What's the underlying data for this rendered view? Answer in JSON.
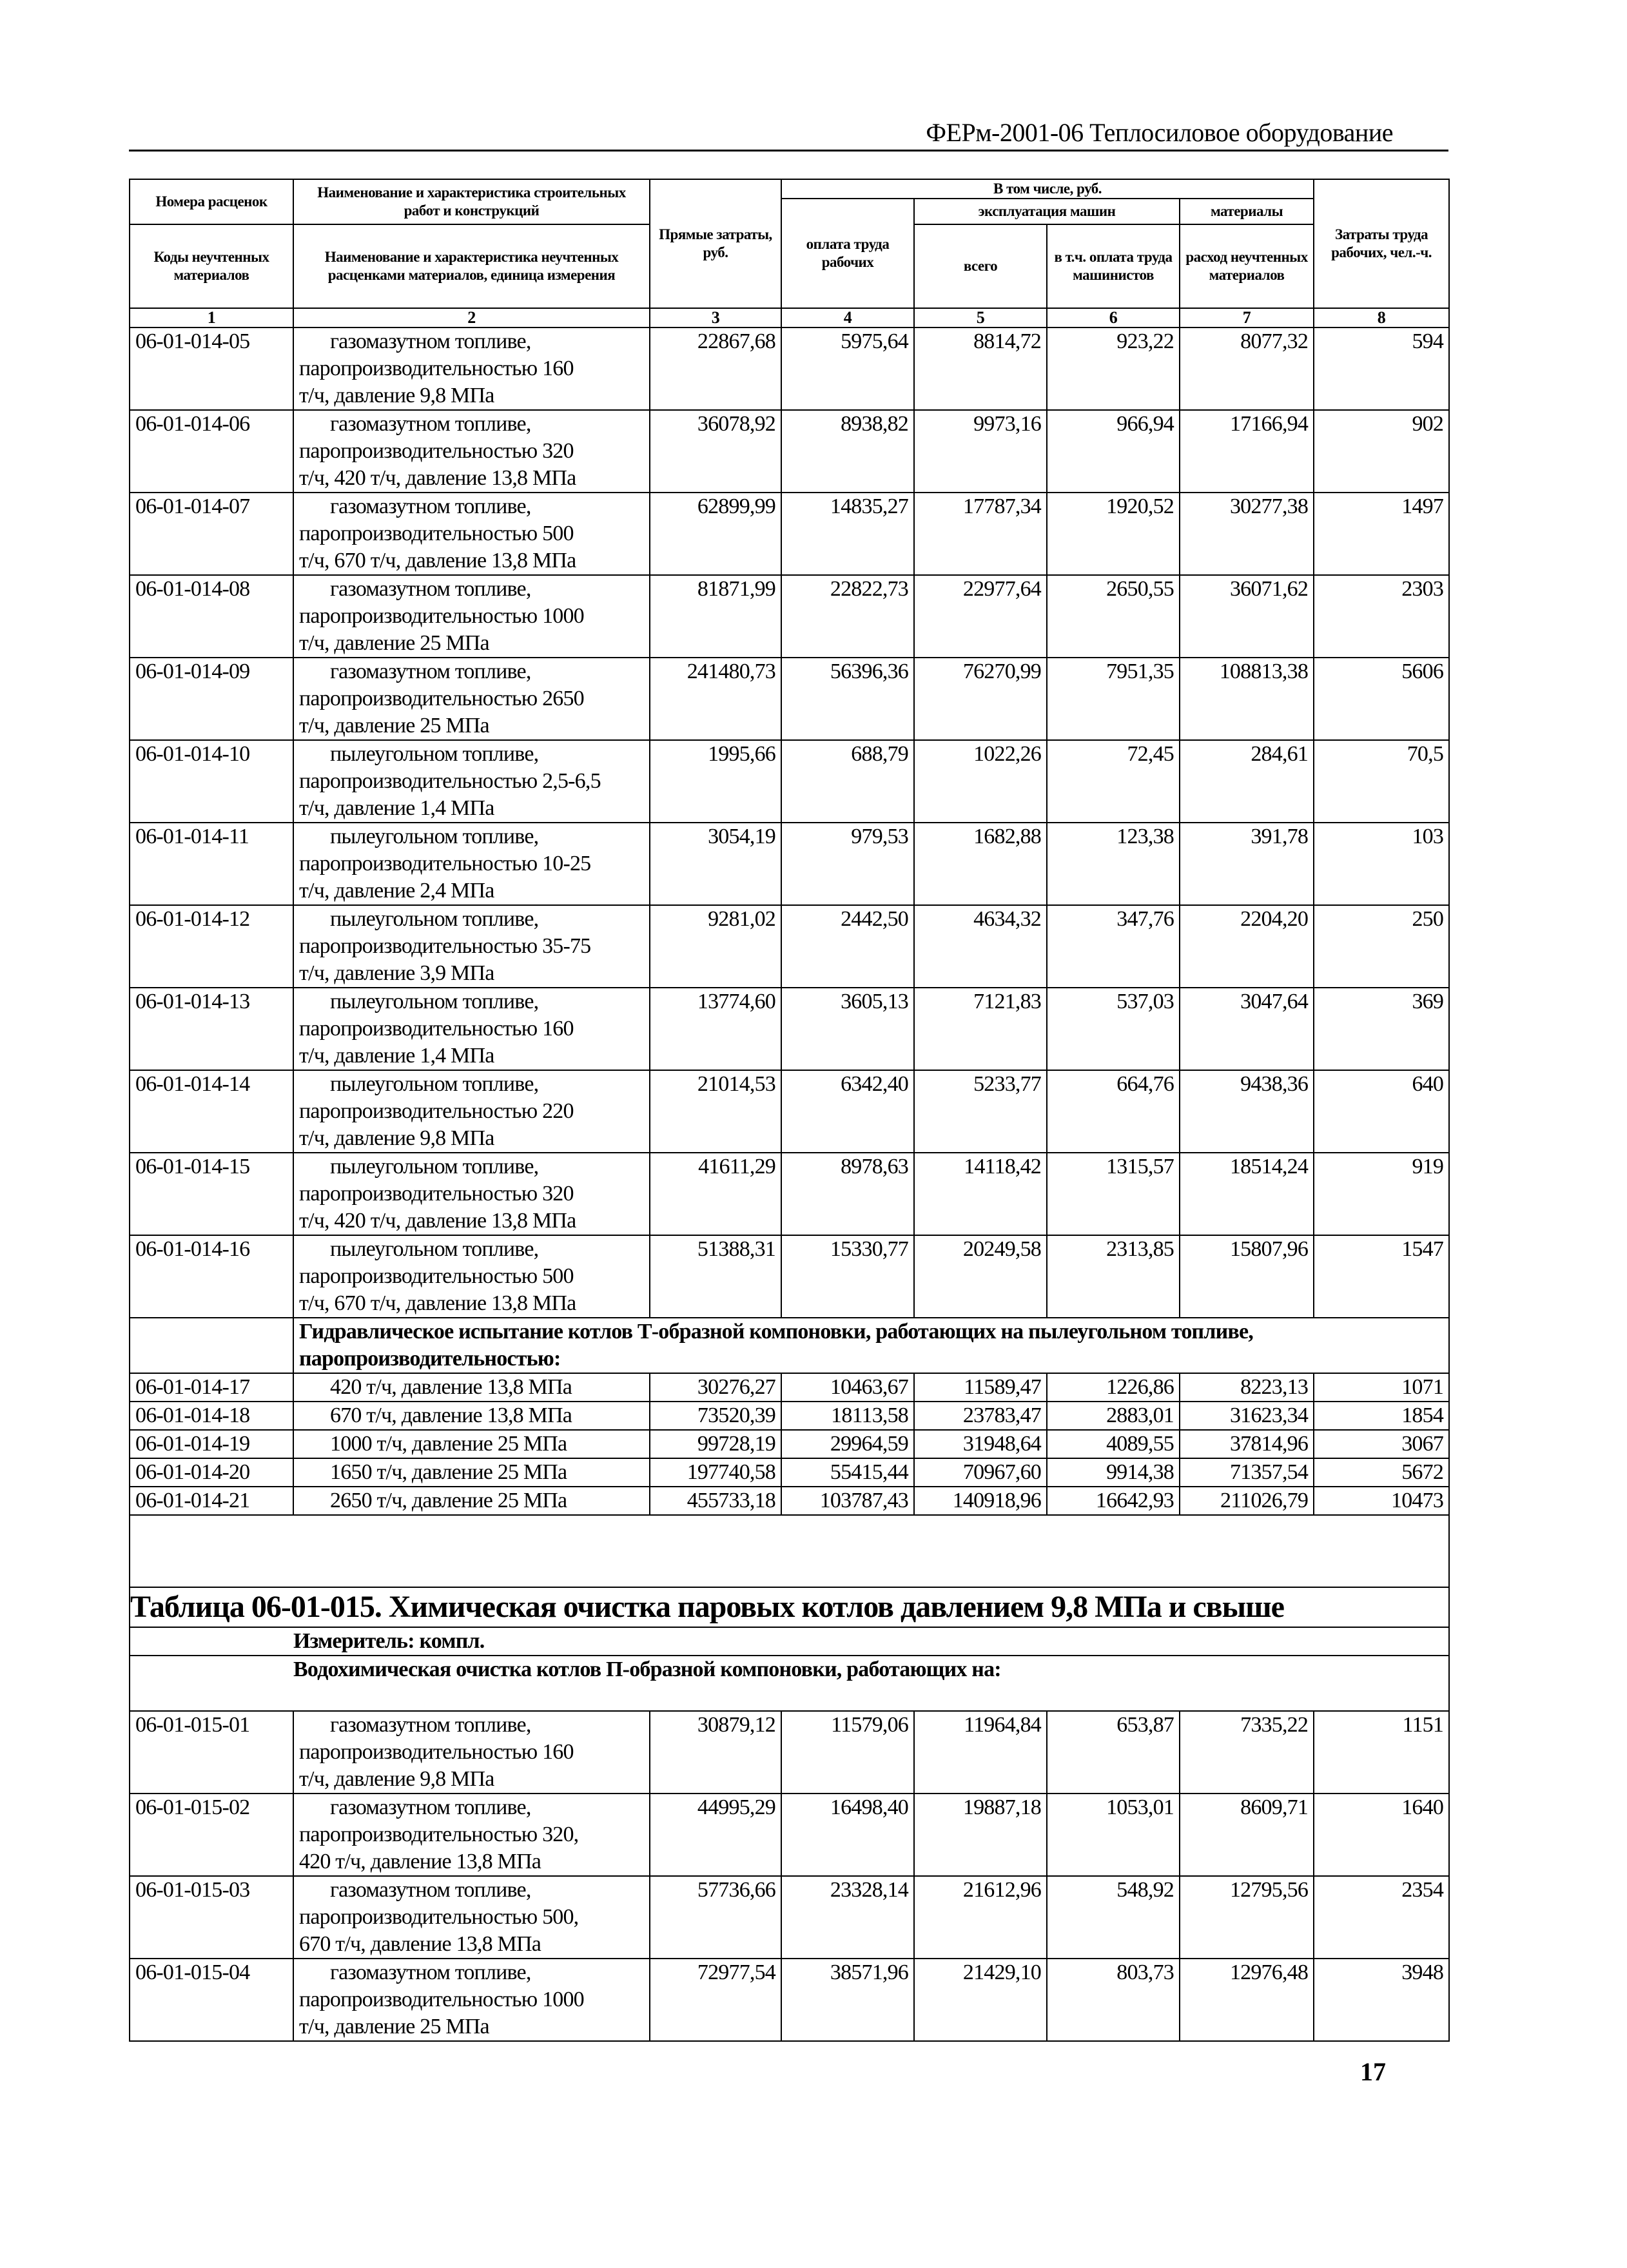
{
  "running_header": "ФЕРм-2001-06 Теплосиловое оборудование",
  "header": {
    "col1_top": "Номера расценок",
    "col1_bottom": "Коды неучтенных материалов",
    "col2_top": "Наименование и характеристика строительных работ и конструкций",
    "col2_bottom": "Наименование и характеристика неучтенных расценками материалов, единица измерения",
    "col3": "Прямые затраты, руб.",
    "including": "В том числе, руб.",
    "labor_pay": "оплата труда рабочих",
    "machines": "эксплуатация машин",
    "machines_total": "всего",
    "machinist_pay": "в т.ч. оплата труда машинистов",
    "materials": "материалы",
    "materials_sub": "расход неучтенных материалов",
    "labor_cost": "Затраты труда рабочих, чел.-ч.",
    "numbers": [
      "1",
      "2",
      "3",
      "4",
      "5",
      "6",
      "7",
      "8"
    ]
  },
  "rows_a": [
    {
      "code": "06-01-014-05",
      "desc": [
        "газомазутном топливе,",
        "паропроизводительностью 160",
        "т/ч, давление 9,8 МПа"
      ],
      "v": [
        "22867,68",
        "5975,64",
        "8814,72",
        "923,22",
        "8077,32",
        "594"
      ]
    },
    {
      "code": "06-01-014-06",
      "desc": [
        "газомазутном топливе,",
        "паропроизводительностью 320",
        "т/ч, 420 т/ч, давление 13,8 МПа"
      ],
      "v": [
        "36078,92",
        "8938,82",
        "9973,16",
        "966,94",
        "17166,94",
        "902"
      ]
    },
    {
      "code": "06-01-014-07",
      "desc": [
        "газомазутном топливе,",
        "паропроизводительностью 500",
        "т/ч, 670 т/ч, давление 13,8 МПа"
      ],
      "v": [
        "62899,99",
        "14835,27",
        "17787,34",
        "1920,52",
        "30277,38",
        "1497"
      ]
    },
    {
      "code": "06-01-014-08",
      "desc": [
        "газомазутном топливе,",
        "паропроизводительностью 1000",
        "т/ч, давление 25 МПа"
      ],
      "v": [
        "81871,99",
        "22822,73",
        "22977,64",
        "2650,55",
        "36071,62",
        "2303"
      ]
    },
    {
      "code": "06-01-014-09",
      "desc": [
        "газомазутном топливе,",
        "паропроизводительностью 2650",
        "т/ч, давление 25 МПа"
      ],
      "v": [
        "241480,73",
        "56396,36",
        "76270,99",
        "7951,35",
        "108813,38",
        "5606"
      ]
    },
    {
      "code": "06-01-014-10",
      "desc": [
        "пылеугольном топливе,",
        "паропроизводительностью 2,5-6,5",
        "т/ч, давление 1,4 МПа"
      ],
      "v": [
        "1995,66",
        "688,79",
        "1022,26",
        "72,45",
        "284,61",
        "70,5"
      ]
    },
    {
      "code": "06-01-014-11",
      "desc": [
        "пылеугольном топливе,",
        "паропроизводительностью 10-25",
        "т/ч, давление 2,4 МПа"
      ],
      "v": [
        "3054,19",
        "979,53",
        "1682,88",
        "123,38",
        "391,78",
        "103"
      ]
    },
    {
      "code": "06-01-014-12",
      "desc": [
        "пылеугольном топливе,",
        "паропроизводительностью 35-75",
        "т/ч, давление 3,9 МПа"
      ],
      "v": [
        "9281,02",
        "2442,50",
        "4634,32",
        "347,76",
        "2204,20",
        "250"
      ]
    },
    {
      "code": "06-01-014-13",
      "desc": [
        "пылеугольном топливе,",
        "паропроизводительностью 160",
        "т/ч, давление 1,4 МПа"
      ],
      "v": [
        "13774,60",
        "3605,13",
        "7121,83",
        "537,03",
        "3047,64",
        "369"
      ]
    },
    {
      "code": "06-01-014-14",
      "desc": [
        "пылеугольном топливе,",
        "паропроизводительностью 220",
        "т/ч, давление 9,8 МПа"
      ],
      "v": [
        "21014,53",
        "6342,40",
        "5233,77",
        "664,76",
        "9438,36",
        "640"
      ]
    },
    {
      "code": "06-01-014-15",
      "desc": [
        "пылеугольном топливе,",
        "паропроизводительностью 320",
        "т/ч, 420 т/ч, давление 13,8 МПа"
      ],
      "v": [
        "41611,29",
        "8978,63",
        "14118,42",
        "1315,57",
        "18514,24",
        "919"
      ]
    },
    {
      "code": "06-01-014-16",
      "desc": [
        "пылеугольном топливе,",
        "паропроизводительностью 500",
        "т/ч, 670 т/ч, давление 13,8 МПа"
      ],
      "v": [
        "51388,31",
        "15330,77",
        "20249,58",
        "2313,85",
        "15807,96",
        "1547"
      ]
    }
  ],
  "section_b": "Гидравлическое испытание котлов Т-образной компоновки, работающих на пылеугольном топливе, паропроизводительностью:",
  "rows_b": [
    {
      "code": "06-01-014-17",
      "desc": [
        "420 т/ч, давление 13,8 МПа"
      ],
      "v": [
        "30276,27",
        "10463,67",
        "11589,47",
        "1226,86",
        "8223,13",
        "1071"
      ]
    },
    {
      "code": "06-01-014-18",
      "desc": [
        "670 т/ч, давление 13,8 МПа"
      ],
      "v": [
        "73520,39",
        "18113,58",
        "23783,47",
        "2883,01",
        "31623,34",
        "1854"
      ]
    },
    {
      "code": "06-01-014-19",
      "desc": [
        "1000 т/ч, давление 25 МПа"
      ],
      "v": [
        "99728,19",
        "29964,59",
        "31948,64",
        "4089,55",
        "37814,96",
        "3067"
      ]
    },
    {
      "code": "06-01-014-20",
      "desc": [
        "1650 т/ч, давление 25 МПа"
      ],
      "v": [
        "197740,58",
        "55415,44",
        "70967,60",
        "9914,38",
        "71357,54",
        "5672"
      ]
    },
    {
      "code": "06-01-014-21",
      "desc": [
        "2650 т/ч, давление 25 МПа"
      ],
      "v": [
        "455733,18",
        "103787,43",
        "140918,96",
        "16642,93",
        "211026,79",
        "10473"
      ]
    }
  ],
  "table_015": {
    "title": "Таблица 06-01-015. Химическая очистка паровых котлов давлением 9,8 МПа и свыше",
    "unit": "Измеритель: компл.",
    "group": "Водохимическая очистка котлов П-образной компоновки, работающих на:",
    "rows": [
      {
        "code": "06-01-015-01",
        "desc": [
          "газомазутном топливе,",
          "паропроизводительностью 160",
          "т/ч, давление 9,8 МПа"
        ],
        "v": [
          "30879,12",
          "11579,06",
          "11964,84",
          "653,87",
          "7335,22",
          "1151"
        ]
      },
      {
        "code": "06-01-015-02",
        "desc": [
          "газомазутном топливе,",
          "паропроизводительностью 320,",
          "420 т/ч, давление 13,8 МПа"
        ],
        "v": [
          "44995,29",
          "16498,40",
          "19887,18",
          "1053,01",
          "8609,71",
          "1640"
        ]
      },
      {
        "code": "06-01-015-03",
        "desc": [
          "газомазутном топливе,",
          "паропроизводительностью 500,",
          "670 т/ч, давление 13,8 МПа"
        ],
        "v": [
          "57736,66",
          "23328,14",
          "21612,96",
          "548,92",
          "12795,56",
          "2354"
        ]
      },
      {
        "code": "06-01-015-04",
        "desc": [
          "газомазутном топливе,",
          "паропроизводительностью 1000",
          "т/ч, давление 25 МПа"
        ],
        "v": [
          "72977,54",
          "38571,96",
          "21429,10",
          "803,73",
          "12976,48",
          "3948"
        ]
      }
    ]
  },
  "page_number": "17"
}
